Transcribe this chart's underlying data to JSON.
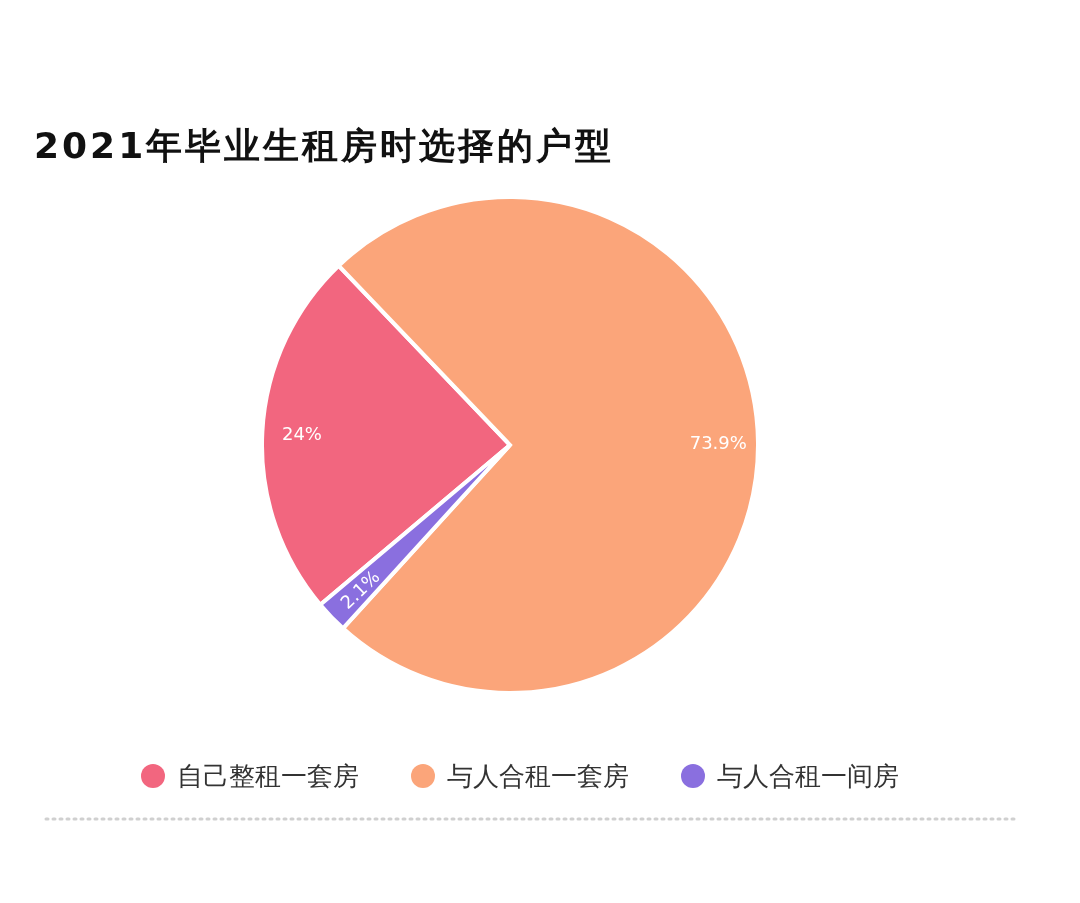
{
  "chart_data": {
    "type": "pie",
    "title": "2021年毕业生租房时选择的户型",
    "categories": [
      "自己整租一套房",
      "与人合租一套房",
      "与人合租一间房"
    ],
    "values": [
      24,
      73.9,
      2.1
    ],
    "colors": [
      "#f2667f",
      "#fba57a",
      "#8a6fdf"
    ],
    "value_labels": [
      "24%",
      "73.9%",
      "2.1%"
    ],
    "legend": "bottom"
  }
}
